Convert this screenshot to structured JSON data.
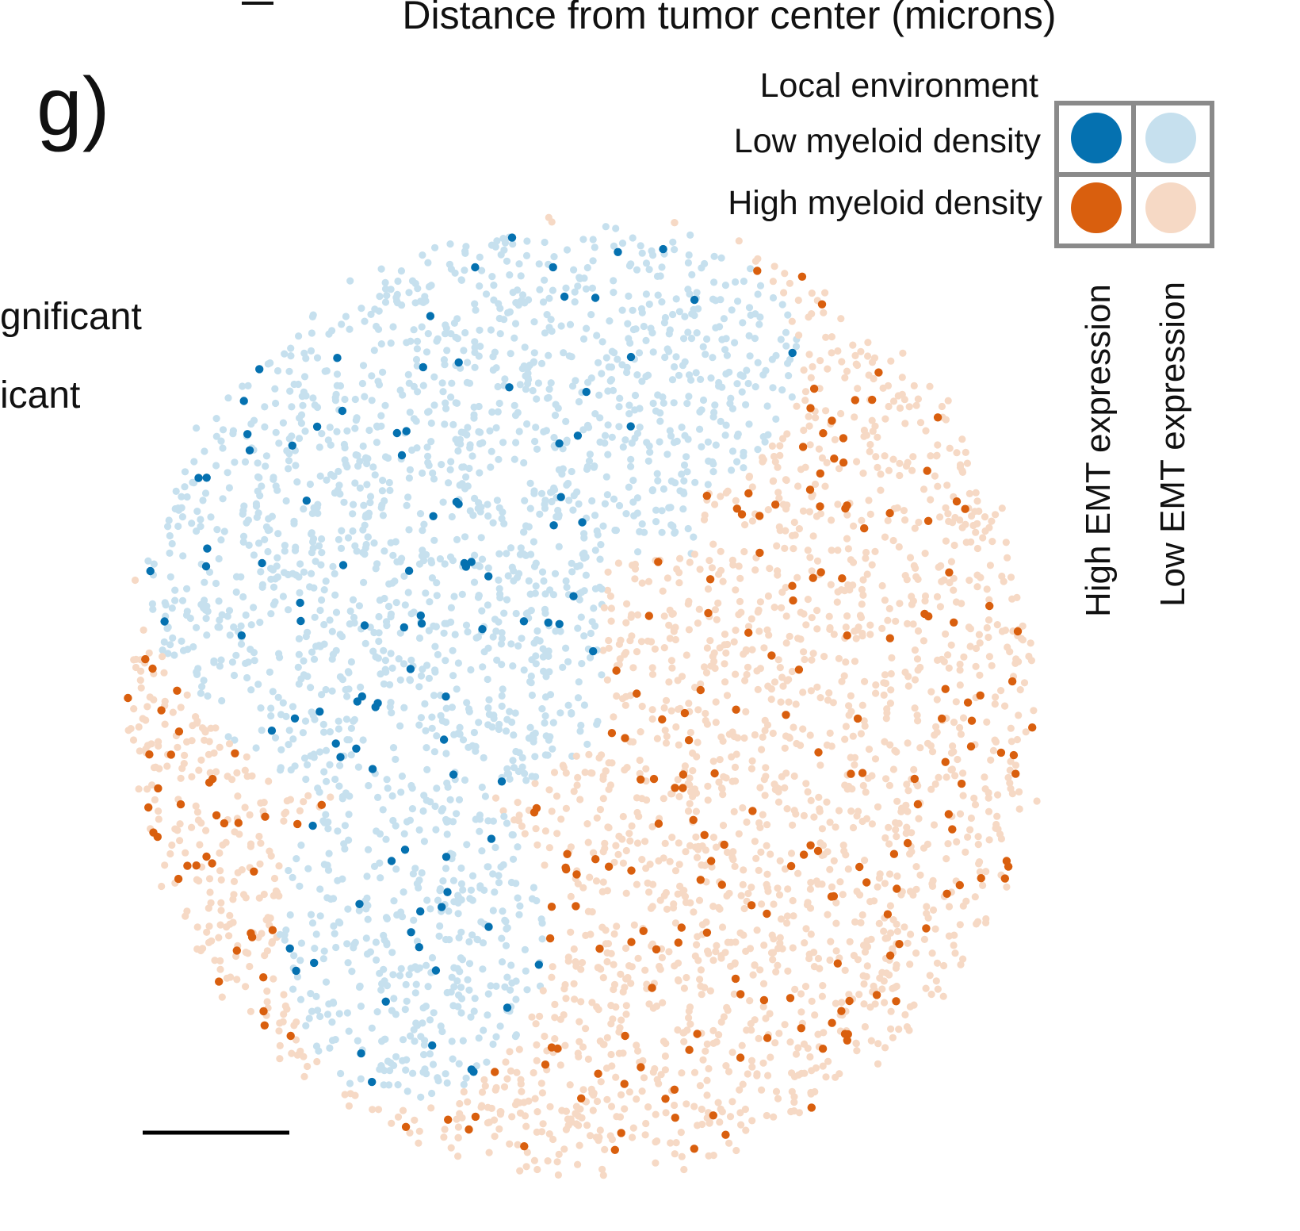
{
  "top_axis_label": "Distance from tumor center (microns)",
  "panel_label": "g)",
  "left_cut_labels": [
    "gnificant",
    "icant"
  ],
  "colors": {
    "high_emt_low_myeloid": "#0571b0",
    "low_emt_low_myeloid": "#c6e0ee",
    "high_emt_high_myeloid": "#d95f0e",
    "low_emt_high_myeloid": "#f6d9c5",
    "legend_border": "#8a8a8a",
    "scale_bar": "#000000"
  },
  "legend": {
    "title": "Local environment",
    "rows": [
      "Low myeloid density",
      "High myeloid density"
    ],
    "columns": [
      "High EMT expression",
      "Low EMT expression"
    ]
  },
  "chart_data": {
    "type": "scatter",
    "title": "",
    "xlabel": "",
    "ylabel": "",
    "description_of_marks": "spatial cell map; each dot is a cell colored by local myeloid density and EMT expression",
    "series": [
      {
        "category": "low_myeloid_high_emt",
        "color": "#0571b0",
        "approx_count": 90
      },
      {
        "category": "low_myeloid_low_emt",
        "color": "#c6e0ee",
        "approx_count": 1900
      },
      {
        "category": "high_myeloid_high_emt",
        "color": "#d95f0e",
        "approx_count": 230
      },
      {
        "category": "high_myeloid_low_emt",
        "color": "#f6d9c5",
        "approx_count": 2000
      }
    ],
    "scale_bar": true,
    "grid": false,
    "legend_placement": "top-right"
  }
}
